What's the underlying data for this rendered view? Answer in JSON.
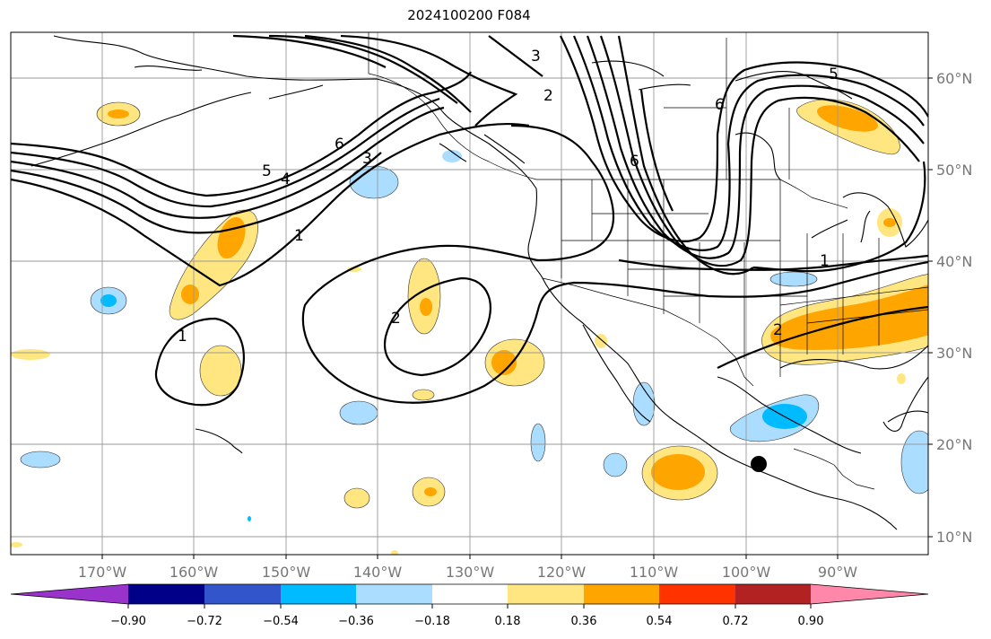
{
  "title": "2024100200 F084",
  "lon_labels": [
    "170°W",
    "160°W",
    "150°W",
    "140°W",
    "130°W",
    "120°W",
    "110°W",
    "100°W",
    "90°W"
  ],
  "lat_labels": [
    "60°N",
    "50°N",
    "40°N",
    "30°N",
    "20°N",
    "10°N"
  ],
  "colorbar": {
    "labels": [
      "−0.90",
      "−0.72",
      "−0.54",
      "−0.36",
      "−0.18",
      "0.18",
      "0.36",
      "0.54",
      "0.72",
      "0.90"
    ],
    "colors": [
      "#9933cc",
      "#000088",
      "#3355cc",
      "#00bbff",
      "#aaddff",
      "#ffffff",
      "#ffe680",
      "#ffa500",
      "#ff3300",
      "#b22222",
      "#ff88aa"
    ]
  },
  "contour_labels": [
    "3",
    "2",
    "6",
    "5",
    "4",
    "3",
    "6",
    "1",
    "1",
    "2",
    "2",
    "6",
    "5",
    "1"
  ],
  "marker": "storm-location-dot"
}
